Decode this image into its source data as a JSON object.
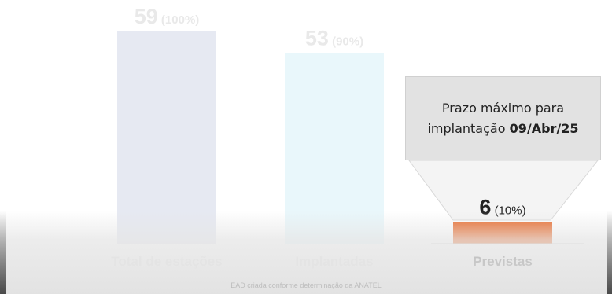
{
  "chart_data": {
    "type": "bar",
    "categories": [
      "Total de estações",
      "Implantadas",
      "Previstas"
    ],
    "values": [
      59,
      53,
      6
    ],
    "percent_labels": [
      "(100%)",
      "(90%)",
      "(10%)"
    ],
    "ylim": [
      0,
      59
    ],
    "grid": false,
    "colors": [
      "#e6e9f2",
      "#e9f7fb",
      "#e8601c"
    ]
  },
  "callout": {
    "text_prefix": "Prazo máximo para implantação",
    "deadline": "09/Abr/25"
  },
  "footnote": "EAD criada conforme determinação da ANATEL"
}
